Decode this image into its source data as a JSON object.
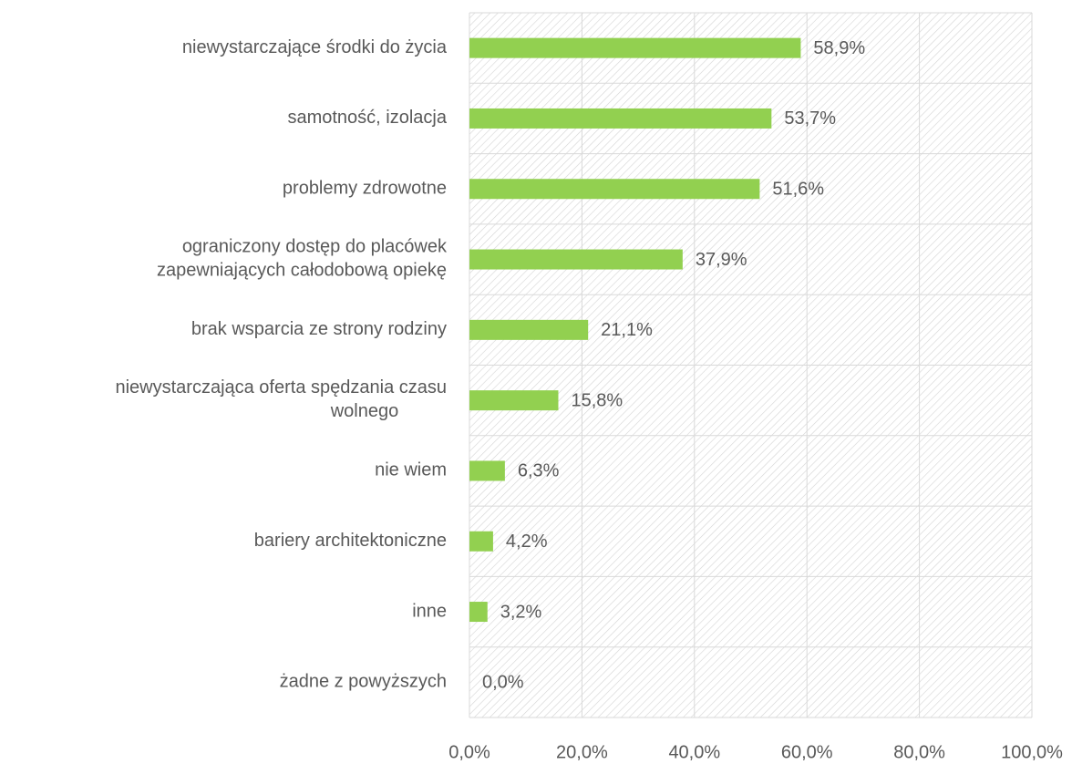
{
  "chart_data": {
    "type": "bar",
    "orientation": "horizontal",
    "categories": [
      "niewystarczające środki do życia",
      "samotność, izolacja",
      "problemy zdrowotne",
      "ograniczony dostęp do placówek\nzapewniających całodobową opiekę",
      "brak wsparcia ze strony rodziny",
      "niewystarczająca oferta spędzania czasu\nwolnego",
      "nie wiem",
      "bariery architektoniczne",
      "inne",
      "żadne z powyższych"
    ],
    "values": [
      58.9,
      53.7,
      51.6,
      37.9,
      21.1,
      15.8,
      6.3,
      4.2,
      3.2,
      0.0
    ],
    "value_labels": [
      "58,9%",
      "53,7%",
      "51,6%",
      "37,9%",
      "21,1%",
      "15,8%",
      "6,3%",
      "4,2%",
      "3,2%",
      "0,0%"
    ],
    "color": "#92d050",
    "xlim": [
      0,
      100
    ],
    "xticks": [
      {
        "value": 0,
        "label": "0,0%"
      },
      {
        "value": 20,
        "label": "20,0%"
      },
      {
        "value": 40,
        "label": "40,0%"
      },
      {
        "value": 60,
        "label": "60,0%"
      },
      {
        "value": 80,
        "label": "80,0%"
      },
      {
        "value": 100,
        "label": "100,0%"
      }
    ],
    "grid": true
  }
}
